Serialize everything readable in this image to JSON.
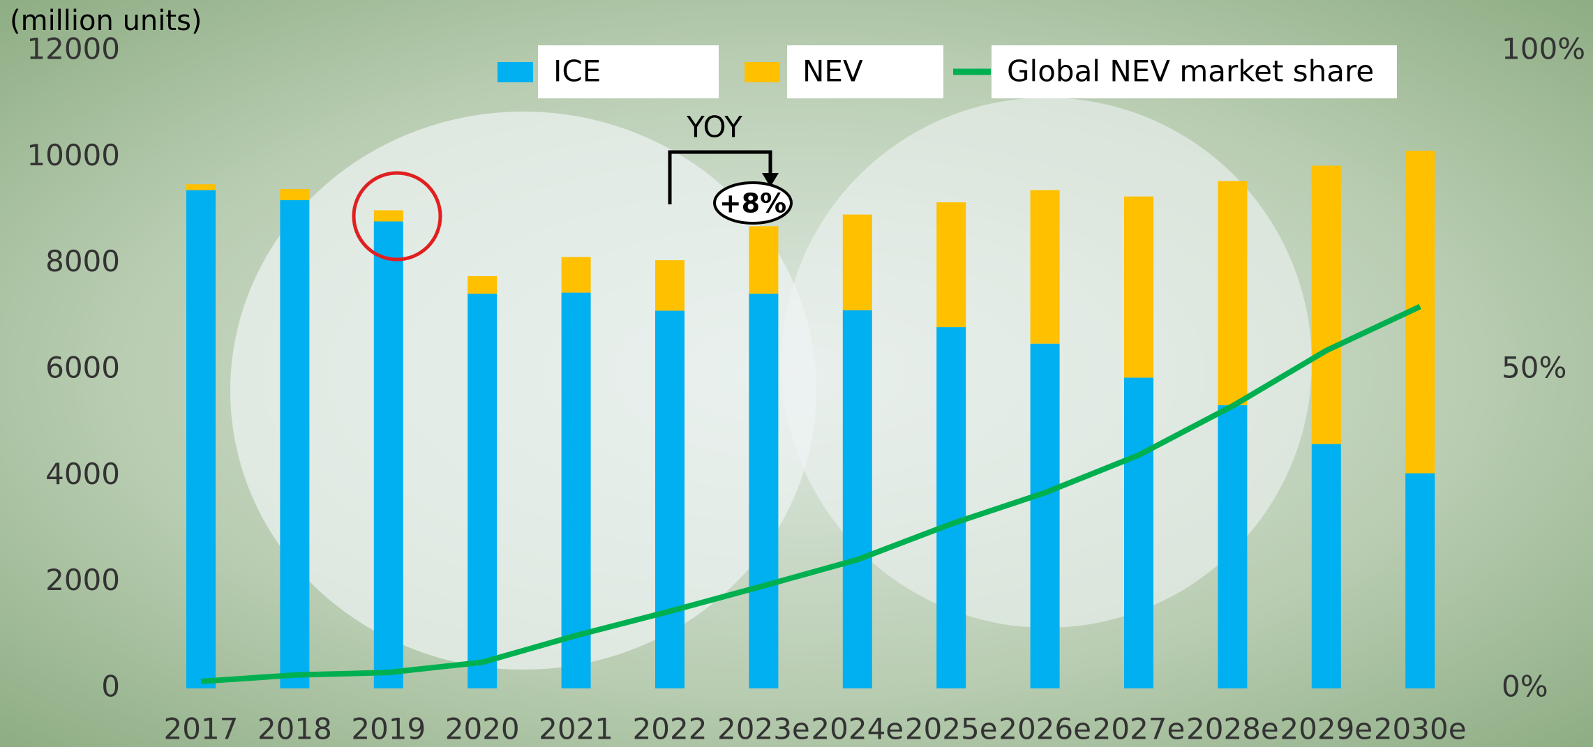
{
  "chart_data": {
    "type": "bar",
    "y_label": "(million units)",
    "categories": [
      "2017",
      "2018",
      "2019",
      "2020",
      "2021",
      "2022",
      "2023e",
      "2024e",
      "2025e",
      "2026e",
      "2027e",
      "2028e",
      "2029e",
      "2030e"
    ],
    "series": [
      {
        "name": "ICE",
        "color": "#00b0f0",
        "values": [
          9380,
          9190,
          8790,
          7430,
          7450,
          7110,
          7430,
          7120,
          6800,
          6490,
          5850,
          5330,
          4600,
          4050
        ]
      },
      {
        "name": "NEV",
        "color": "#ffc000",
        "values": [
          110,
          210,
          210,
          330,
          670,
          950,
          1270,
          1800,
          2350,
          2890,
          3410,
          4220,
          5240,
          6070
        ]
      },
      {
        "name": "Global NEV market share",
        "color": "#00b050",
        "type": "line",
        "axis": "y2",
        "values": [
          1.1,
          2.1,
          2.5,
          4.1,
          8.3,
          12.1,
          16.1,
          20.2,
          25.8,
          30.7,
          36.6,
          44.3,
          53.0,
          59.9
        ]
      }
    ],
    "ylim": [
      0,
      12000
    ],
    "yticks": [
      0,
      2000,
      4000,
      6000,
      8000,
      10000,
      12000
    ],
    "y2lim": [
      0,
      100
    ],
    "y2ticks": [
      {
        "value": 0,
        "label": "0%"
      },
      {
        "value": 50,
        "label": "50%"
      },
      {
        "value": 100,
        "label": "100%"
      }
    ],
    "annotations": [
      "YOY",
      "+8%"
    ],
    "legend": "top"
  }
}
